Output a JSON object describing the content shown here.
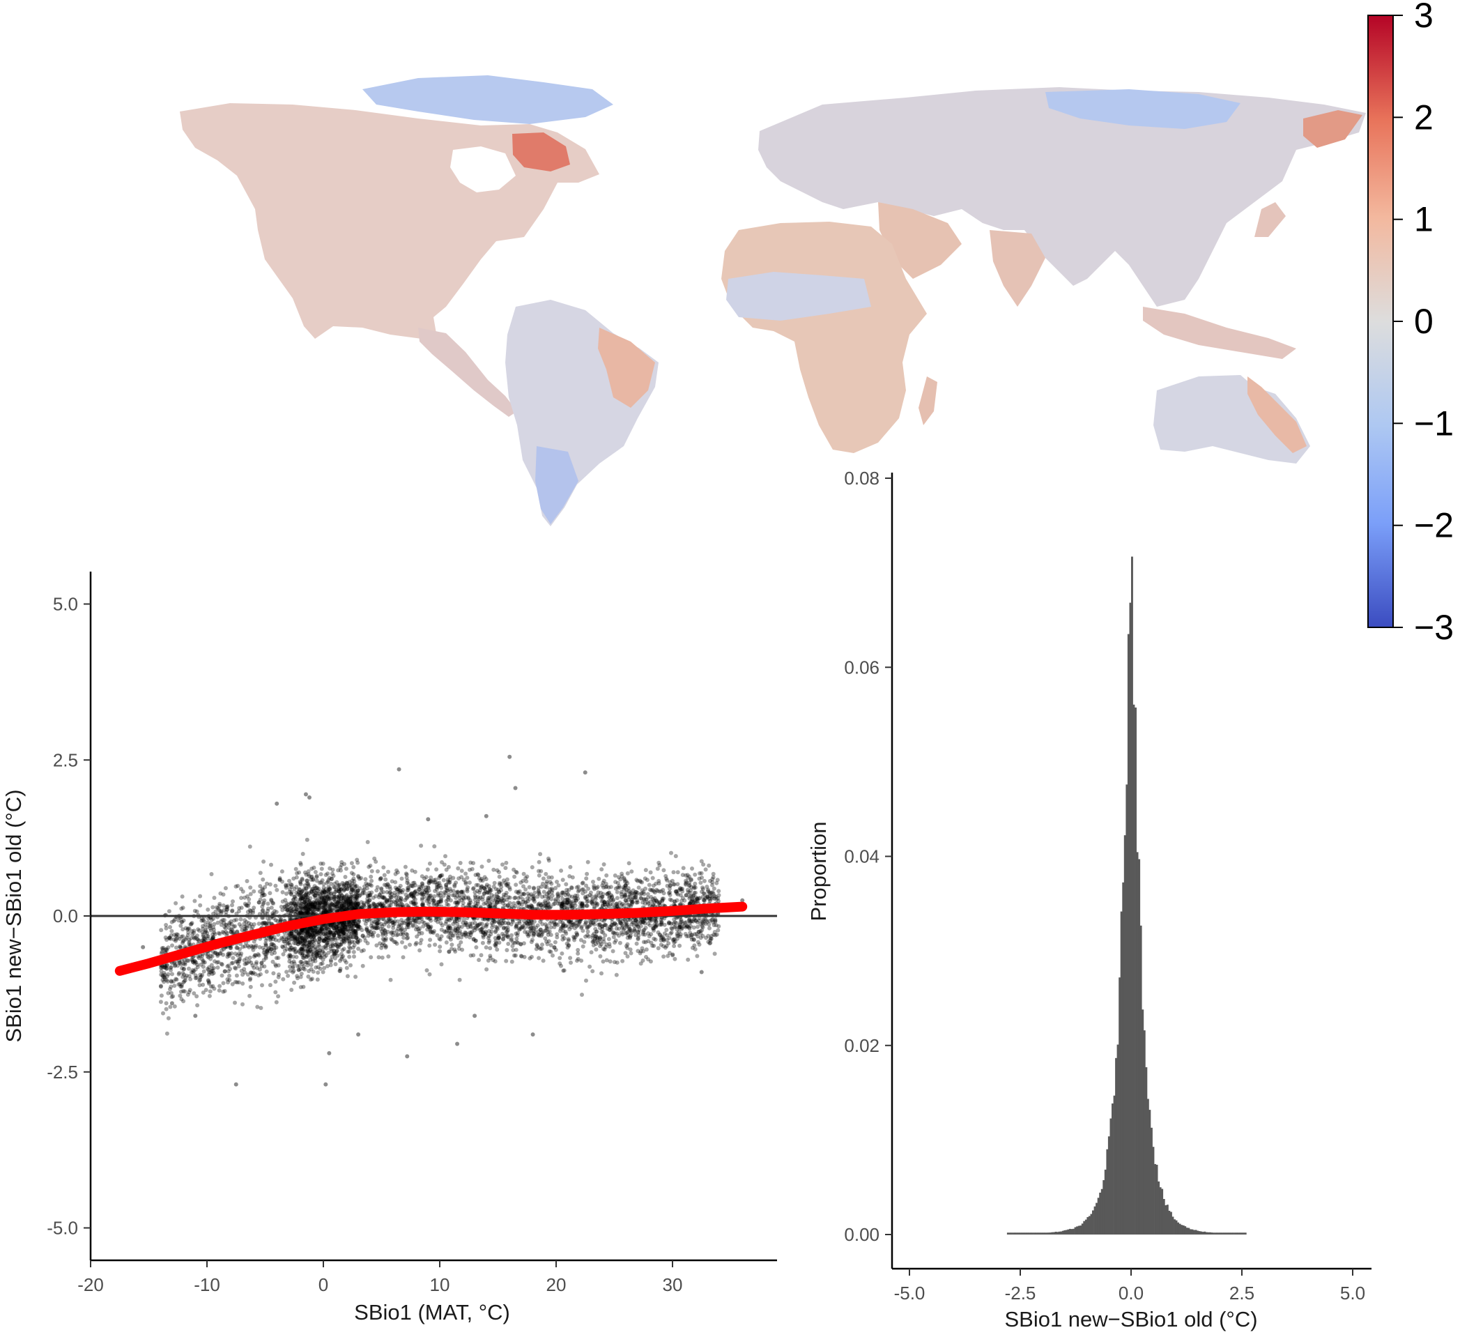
{
  "map_colorbar": {
    "ticks": [
      3,
      2,
      1,
      0,
      -1,
      -2,
      -3
    ],
    "tick_labels": [
      "3",
      "2",
      "1",
      "0",
      "−1",
      "−2",
      "−3"
    ],
    "colors": {
      "high": "#b40426",
      "mid": "#dddddd",
      "low": "#3b4cc0"
    }
  },
  "chart_data": [
    {
      "type": "map",
      "description_of_values": "raster of SBio1 new - SBio1 old differences",
      "value_range": [
        -3,
        3
      ],
      "colorbar": [
        "3",
        "2",
        "1",
        "0",
        "−1",
        "−2",
        "−3"
      ]
    },
    {
      "type": "scatter",
      "xlabel": "SBio1 (MAT, °C)",
      "ylabel": "SBio1 new−SBio1 old (°C)",
      "xlim": [
        -21,
        39
      ],
      "ylim": [
        -5.5,
        5.5
      ],
      "x_ticks": [
        -20,
        -10,
        0,
        10,
        20,
        30
      ],
      "y_ticks": [
        -5.0,
        -2.5,
        0.0,
        2.5,
        5.0
      ],
      "x_tick_labels": [
        "-20",
        "-10",
        "0",
        "10",
        "20",
        "30"
      ],
      "y_tick_labels": [
        "-5.0",
        "-2.5",
        "0.0",
        "2.5",
        "5.0"
      ],
      "hline": 0,
      "trend_line": {
        "color": "#ff0000",
        "x": [
          -17.5,
          -15,
          -12,
          -9,
          -6,
          -3,
          0,
          3,
          6,
          9,
          12,
          15,
          18,
          21,
          24,
          27,
          30,
          33,
          36
        ],
        "y": [
          -0.88,
          -0.76,
          -0.6,
          -0.44,
          -0.3,
          -0.16,
          -0.05,
          0.03,
          0.06,
          0.07,
          0.06,
          0.04,
          0.02,
          0.02,
          0.03,
          0.05,
          0.08,
          0.12,
          0.15
        ]
      },
      "outlier_points": [
        {
          "x": -7.5,
          "y": -2.7
        },
        {
          "x": 0.2,
          "y": -2.7
        },
        {
          "x": 0.5,
          "y": -2.2
        },
        {
          "x": 7.2,
          "y": -2.25
        },
        {
          "x": 3,
          "y": -1.9
        },
        {
          "x": 11.5,
          "y": -2.05
        },
        {
          "x": 18,
          "y": -1.9
        },
        {
          "x": 13,
          "y": -1.6
        },
        {
          "x": 16,
          "y": 2.55
        },
        {
          "x": 6.5,
          "y": 2.35
        },
        {
          "x": 22.5,
          "y": 2.3
        },
        {
          "x": 16.5,
          "y": 2.05
        },
        {
          "x": -1.5,
          "y": 1.95
        },
        {
          "x": -1.2,
          "y": 1.9
        },
        {
          "x": -4,
          "y": 1.8
        },
        {
          "x": 9,
          "y": 1.55
        },
        {
          "x": 14,
          "y": 1.6
        },
        {
          "x": 32.5,
          "y": -0.9
        },
        {
          "x": -15.5,
          "y": -0.5
        },
        {
          "x": 36,
          "y": 0.25
        },
        {
          "x": -13,
          "y": -1.4
        },
        {
          "x": -11,
          "y": -1.6
        }
      ]
    },
    {
      "type": "bar",
      "subtype": "histogram",
      "xlabel": "SBio1 new−SBio1 old (°C)",
      "ylabel": "Proportion",
      "xlim": [
        -5.5,
        5.5
      ],
      "ylim": [
        0,
        0.08
      ],
      "x_ticks": [
        -5.0,
        -2.5,
        0.0,
        2.5,
        5.0
      ],
      "y_ticks": [
        0.0,
        0.02,
        0.04,
        0.06,
        0.08
      ],
      "x_tick_labels": [
        "-5.0",
        "-2.5",
        "0.0",
        "2.5",
        "5.0"
      ],
      "y_tick_labels": [
        "0.00",
        "0.02",
        "0.04",
        "0.06",
        "0.08"
      ],
      "bin_width": 0.04,
      "color": "#595959",
      "peak": {
        "x": 0.0,
        "y": 0.077
      }
    }
  ]
}
